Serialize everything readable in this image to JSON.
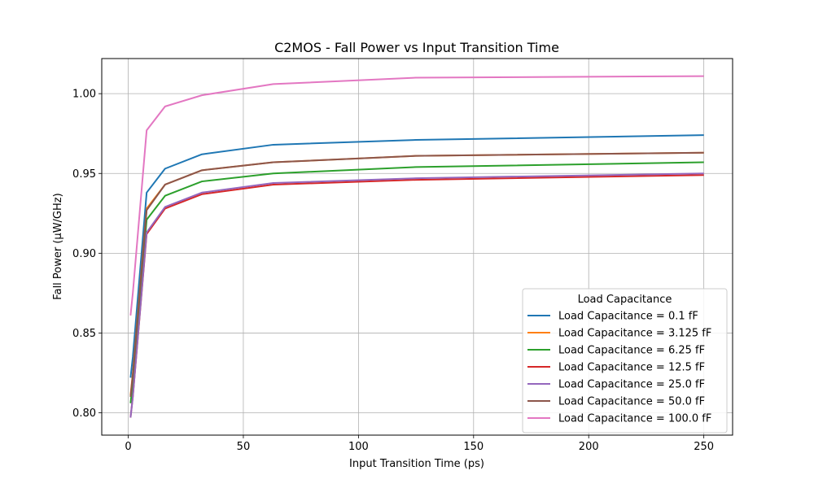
{
  "chart_data": {
    "type": "line",
    "title": "C2MOS - Fall Power vs Input Transition Time",
    "xlabel": "Input Transition Time (ps)",
    "ylabel": "Fall Power (µW/GHz)",
    "xlim": [
      -11.5,
      262.5
    ],
    "ylim": [
      0.786,
      1.022
    ],
    "x_ticks": [
      0,
      50,
      100,
      150,
      200,
      250
    ],
    "x_tick_labels": [
      "0",
      "50",
      "100",
      "150",
      "200",
      "250"
    ],
    "y_ticks": [
      0.8,
      0.85,
      0.9,
      0.95,
      1.0
    ],
    "y_tick_labels": [
      "0.80",
      "0.85",
      "0.90",
      "0.95",
      "1.00"
    ],
    "grid": true,
    "legend": {
      "title": "Load Capacitance",
      "position": "lower-right"
    },
    "x": [
      1,
      2,
      8,
      16,
      32,
      63,
      125,
      250
    ],
    "series": [
      {
        "name": "Load Capacitance = 0.1 fF",
        "color": "#1f77b4",
        "values": [
          0.822,
          0.835,
          0.938,
          0.953,
          0.962,
          0.968,
          0.971,
          0.974
        ]
      },
      {
        "name": "Load Capacitance = 3.125 fF",
        "color": "#ff7f0e",
        "values": [
          0.811,
          0.825,
          0.928,
          0.943,
          0.952,
          0.957,
          0.961,
          0.963
        ]
      },
      {
        "name": "Load Capacitance = 6.25 fF",
        "color": "#2ca02c",
        "values": [
          0.806,
          0.819,
          0.921,
          0.936,
          0.945,
          0.95,
          0.954,
          0.957
        ]
      },
      {
        "name": "Load Capacitance = 12.5 fF",
        "color": "#d62728",
        "values": [
          0.797,
          0.81,
          0.912,
          0.928,
          0.937,
          0.943,
          0.946,
          0.949
        ]
      },
      {
        "name": "Load Capacitance = 25.0 fF",
        "color": "#9467bd",
        "values": [
          0.797,
          0.81,
          0.913,
          0.929,
          0.938,
          0.944,
          0.947,
          0.95
        ]
      },
      {
        "name": "Load Capacitance = 50.0 fF",
        "color": "#8c564b",
        "values": [
          0.81,
          0.824,
          0.927,
          0.943,
          0.952,
          0.957,
          0.961,
          0.963
        ]
      },
      {
        "name": "Load Capacitance = 100.0 fF",
        "color": "#e377c2",
        "values": [
          0.861,
          0.875,
          0.977,
          0.992,
          0.999,
          1.006,
          1.01,
          1.011
        ]
      }
    ]
  }
}
